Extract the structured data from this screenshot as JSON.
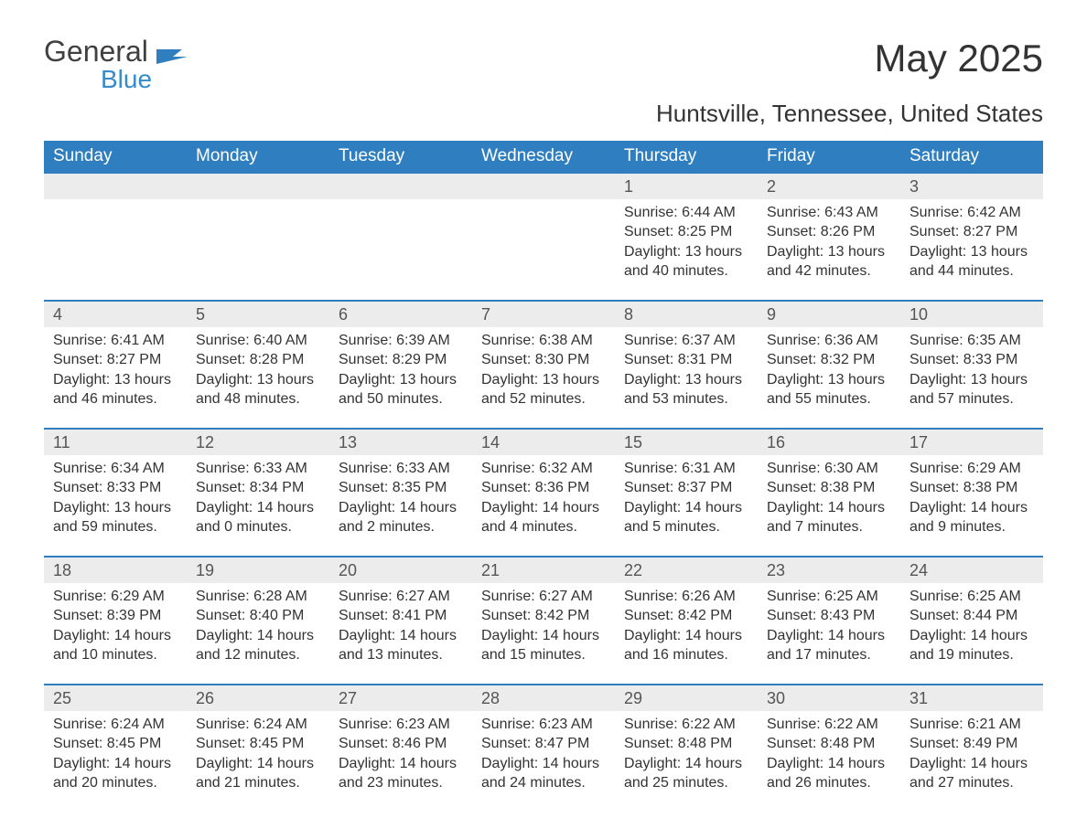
{
  "brand": {
    "word1": "General",
    "word2": "Blue",
    "icon_color": "#2f7fc0",
    "text_color_dark": "#404040",
    "text_color_blue": "#2f7fc0"
  },
  "header": {
    "title": "May 2025",
    "location": "Huntsville, Tennessee, United States"
  },
  "colors": {
    "header_bg": "#2f7fc0",
    "header_text": "#ffffff",
    "daynum_bg": "#ececec",
    "daynum_text": "#555555",
    "body_text": "#333333",
    "rule": "#2f7fc0",
    "page_bg": "#ffffff"
  },
  "typography": {
    "title_fontsize": 42,
    "subtitle_fontsize": 26,
    "weekday_fontsize": 19,
    "daynum_fontsize": 18,
    "body_fontsize": 16,
    "font_family": "Arial"
  },
  "calendar": {
    "type": "table",
    "columns": [
      "Sunday",
      "Monday",
      "Tuesday",
      "Wednesday",
      "Thursday",
      "Friday",
      "Saturday"
    ],
    "weeks": [
      [
        null,
        null,
        null,
        null,
        {
          "day": "1",
          "sunrise": "6:44 AM",
          "sunset": "8:25 PM",
          "daylight": "13 hours and 40 minutes."
        },
        {
          "day": "2",
          "sunrise": "6:43 AM",
          "sunset": "8:26 PM",
          "daylight": "13 hours and 42 minutes."
        },
        {
          "day": "3",
          "sunrise": "6:42 AM",
          "sunset": "8:27 PM",
          "daylight": "13 hours and 44 minutes."
        }
      ],
      [
        {
          "day": "4",
          "sunrise": "6:41 AM",
          "sunset": "8:27 PM",
          "daylight": "13 hours and 46 minutes."
        },
        {
          "day": "5",
          "sunrise": "6:40 AM",
          "sunset": "8:28 PM",
          "daylight": "13 hours and 48 minutes."
        },
        {
          "day": "6",
          "sunrise": "6:39 AM",
          "sunset": "8:29 PM",
          "daylight": "13 hours and 50 minutes."
        },
        {
          "day": "7",
          "sunrise": "6:38 AM",
          "sunset": "8:30 PM",
          "daylight": "13 hours and 52 minutes."
        },
        {
          "day": "8",
          "sunrise": "6:37 AM",
          "sunset": "8:31 PM",
          "daylight": "13 hours and 53 minutes."
        },
        {
          "day": "9",
          "sunrise": "6:36 AM",
          "sunset": "8:32 PM",
          "daylight": "13 hours and 55 minutes."
        },
        {
          "day": "10",
          "sunrise": "6:35 AM",
          "sunset": "8:33 PM",
          "daylight": "13 hours and 57 minutes."
        }
      ],
      [
        {
          "day": "11",
          "sunrise": "6:34 AM",
          "sunset": "8:33 PM",
          "daylight": "13 hours and 59 minutes."
        },
        {
          "day": "12",
          "sunrise": "6:33 AM",
          "sunset": "8:34 PM",
          "daylight": "14 hours and 0 minutes."
        },
        {
          "day": "13",
          "sunrise": "6:33 AM",
          "sunset": "8:35 PM",
          "daylight": "14 hours and 2 minutes."
        },
        {
          "day": "14",
          "sunrise": "6:32 AM",
          "sunset": "8:36 PM",
          "daylight": "14 hours and 4 minutes."
        },
        {
          "day": "15",
          "sunrise": "6:31 AM",
          "sunset": "8:37 PM",
          "daylight": "14 hours and 5 minutes."
        },
        {
          "day": "16",
          "sunrise": "6:30 AM",
          "sunset": "8:38 PM",
          "daylight": "14 hours and 7 minutes."
        },
        {
          "day": "17",
          "sunrise": "6:29 AM",
          "sunset": "8:38 PM",
          "daylight": "14 hours and 9 minutes."
        }
      ],
      [
        {
          "day": "18",
          "sunrise": "6:29 AM",
          "sunset": "8:39 PM",
          "daylight": "14 hours and 10 minutes."
        },
        {
          "day": "19",
          "sunrise": "6:28 AM",
          "sunset": "8:40 PM",
          "daylight": "14 hours and 12 minutes."
        },
        {
          "day": "20",
          "sunrise": "6:27 AM",
          "sunset": "8:41 PM",
          "daylight": "14 hours and 13 minutes."
        },
        {
          "day": "21",
          "sunrise": "6:27 AM",
          "sunset": "8:42 PM",
          "daylight": "14 hours and 15 minutes."
        },
        {
          "day": "22",
          "sunrise": "6:26 AM",
          "sunset": "8:42 PM",
          "daylight": "14 hours and 16 minutes."
        },
        {
          "day": "23",
          "sunrise": "6:25 AM",
          "sunset": "8:43 PM",
          "daylight": "14 hours and 17 minutes."
        },
        {
          "day": "24",
          "sunrise": "6:25 AM",
          "sunset": "8:44 PM",
          "daylight": "14 hours and 19 minutes."
        }
      ],
      [
        {
          "day": "25",
          "sunrise": "6:24 AM",
          "sunset": "8:45 PM",
          "daylight": "14 hours and 20 minutes."
        },
        {
          "day": "26",
          "sunrise": "6:24 AM",
          "sunset": "8:45 PM",
          "daylight": "14 hours and 21 minutes."
        },
        {
          "day": "27",
          "sunrise": "6:23 AM",
          "sunset": "8:46 PM",
          "daylight": "14 hours and 23 minutes."
        },
        {
          "day": "28",
          "sunrise": "6:23 AM",
          "sunset": "8:47 PM",
          "daylight": "14 hours and 24 minutes."
        },
        {
          "day": "29",
          "sunrise": "6:22 AM",
          "sunset": "8:48 PM",
          "daylight": "14 hours and 25 minutes."
        },
        {
          "day": "30",
          "sunrise": "6:22 AM",
          "sunset": "8:48 PM",
          "daylight": "14 hours and 26 minutes."
        },
        {
          "day": "31",
          "sunrise": "6:21 AM",
          "sunset": "8:49 PM",
          "daylight": "14 hours and 27 minutes."
        }
      ]
    ],
    "labels": {
      "sunrise": "Sunrise:",
      "sunset": "Sunset:",
      "daylight": "Daylight:"
    }
  }
}
